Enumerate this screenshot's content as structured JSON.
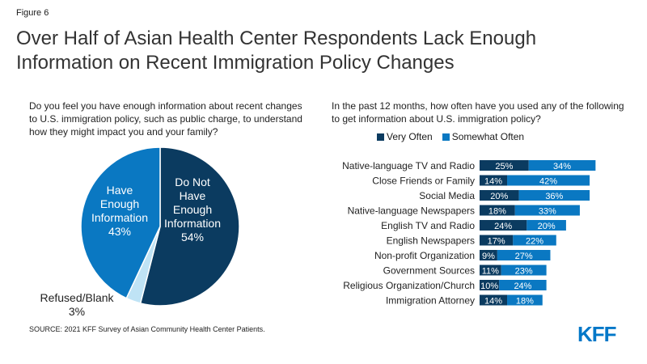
{
  "figure_label": "Figure 6",
  "title": "Over Half of Asian Health Center Respondents Lack Enough Information on Recent Immigration Policy Changes",
  "source": "SOURCE: 2021 KFF Survey of Asian Community Health Center Patients.",
  "logo": "KFF",
  "colors": {
    "dark": "#0b3b60",
    "medium": "#0a78c2",
    "light": "#bfe3f5"
  },
  "chart_data": [
    {
      "type": "pie",
      "title": "Do you feel you have enough information about recent changes to U.S. immigration policy, such as public charge, to understand how they might impact you and your family?",
      "slices": [
        {
          "label": "Do Not Have Enough Information",
          "value": 54,
          "value_label": "54%",
          "color": "#0b3b60"
        },
        {
          "label": "Refused/Blank",
          "value": 3,
          "value_label": "3%",
          "color": "#bfe3f5"
        },
        {
          "label": "Have Enough Information",
          "value": 43,
          "value_label": "43%",
          "color": "#0a78c2"
        }
      ]
    },
    {
      "type": "bar",
      "orientation": "horizontal",
      "stacked": true,
      "title": "In the past 12 months, how often have you used any of the following to get information about U.S. immigration policy?",
      "legend_position": "top",
      "categories": [
        "Native-language TV and Radio",
        "Close Friends or Family",
        "Social Media",
        "Native-language Newspapers",
        "English TV and Radio",
        "English Newspapers",
        "Non-profit Organization",
        "Government Sources",
        "Religious Organization/Church",
        "Immigration Attorney"
      ],
      "series": [
        {
          "name": "Very Often",
          "color": "#0b3b60",
          "values": [
            25,
            14,
            20,
            18,
            24,
            17,
            9,
            11,
            10,
            14
          ],
          "labels": [
            "25%",
            "14%",
            "20%",
            "18%",
            "24%",
            "17%",
            "9%",
            "11%",
            "10%",
            "14%"
          ]
        },
        {
          "name": "Somewhat Often",
          "color": "#0a78c2",
          "values": [
            34,
            42,
            36,
            33,
            20,
            22,
            27,
            23,
            24,
            18
          ],
          "labels": [
            "34%",
            "42%",
            "36%",
            "33%",
            "20%",
            "22%",
            "27%",
            "23%",
            "24%",
            "18%"
          ]
        }
      ]
    }
  ]
}
